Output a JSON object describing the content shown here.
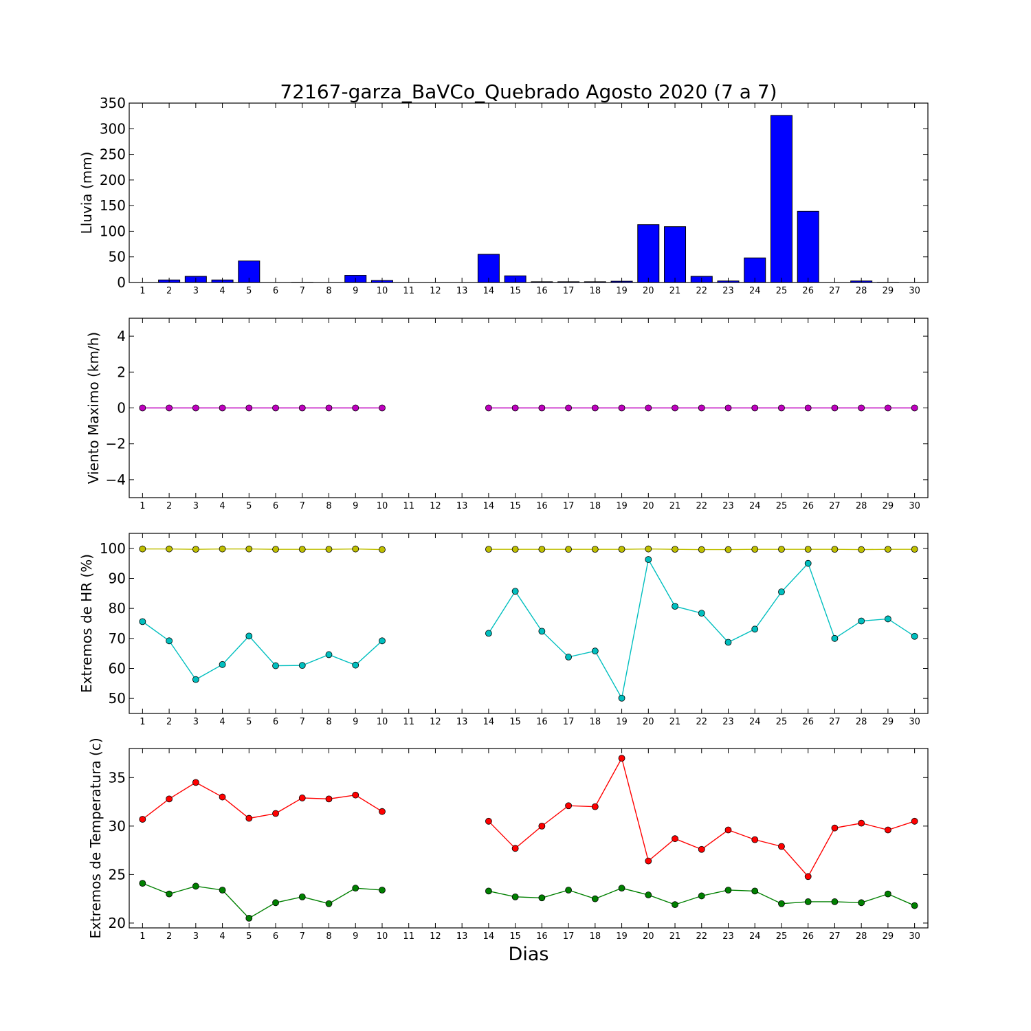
{
  "title": "72167-garza_BaVCo_Quebrado Agosto 2020  (7 a 7)",
  "xlabel": "Dias",
  "chart_data": [
    {
      "type": "bar",
      "ylabel": "Lluvia (mm)",
      "ylim": [
        0,
        350
      ],
      "yticks": [
        0,
        50,
        100,
        150,
        200,
        250,
        300,
        350
      ],
      "x": [
        1,
        2,
        3,
        4,
        5,
        6,
        7,
        8,
        9,
        10,
        11,
        12,
        13,
        14,
        15,
        16,
        17,
        18,
        19,
        20,
        21,
        22,
        23,
        24,
        25,
        26,
        27,
        28,
        29,
        30
      ],
      "xlim": [
        0.5,
        30.5
      ],
      "series": [
        {
          "color": "#0000ff",
          "values": [
            0,
            5,
            12,
            5,
            42,
            0,
            0.3,
            0,
            14,
            4,
            null,
            null,
            null,
            55,
            13,
            1.5,
            1.5,
            1.5,
            2.5,
            113,
            109,
            12,
            3,
            48,
            326,
            139,
            0,
            3,
            0.3,
            0
          ]
        }
      ]
    },
    {
      "type": "line",
      "ylabel": "Viento Maximo (km/h)",
      "ylim": [
        -5,
        5
      ],
      "yticks": [
        -4,
        -2,
        0,
        2,
        4
      ],
      "yticklabels": [
        "−4",
        "−2",
        "0",
        "2",
        "4"
      ],
      "x": [
        1,
        2,
        3,
        4,
        5,
        6,
        7,
        8,
        9,
        10,
        11,
        12,
        13,
        14,
        15,
        16,
        17,
        18,
        19,
        20,
        21,
        22,
        23,
        24,
        25,
        26,
        27,
        28,
        29,
        30
      ],
      "xlim": [
        0.5,
        30.5
      ],
      "series": [
        {
          "color": "#bf00bf",
          "values": [
            0,
            0,
            0,
            0,
            0,
            0,
            0,
            0,
            0,
            0,
            null,
            null,
            null,
            0,
            0,
            0,
            0,
            0,
            0,
            0,
            0,
            0,
            0,
            0,
            0,
            0,
            0,
            0,
            0,
            0
          ]
        }
      ]
    },
    {
      "type": "line",
      "ylabel": "Extremos de HR (%)",
      "ylim": [
        45,
        105
      ],
      "yticks": [
        50,
        60,
        70,
        80,
        90,
        100
      ],
      "x": [
        1,
        2,
        3,
        4,
        5,
        6,
        7,
        8,
        9,
        10,
        11,
        12,
        13,
        14,
        15,
        16,
        17,
        18,
        19,
        20,
        21,
        22,
        23,
        24,
        25,
        26,
        27,
        28,
        29,
        30
      ],
      "xlim": [
        0.5,
        30.5
      ],
      "series": [
        {
          "color": "#bfbf00",
          "values": [
            99.8,
            99.8,
            99.7,
            99.8,
            99.8,
            99.7,
            99.7,
            99.7,
            99.8,
            99.6,
            null,
            null,
            null,
            99.7,
            99.7,
            99.7,
            99.7,
            99.7,
            99.7,
            99.8,
            99.7,
            99.6,
            99.6,
            99.7,
            99.7,
            99.7,
            99.7,
            99.6,
            99.7,
            99.7
          ]
        },
        {
          "color": "#00bfbf",
          "values": [
            75.6,
            69.2,
            56.3,
            61.3,
            70.8,
            60.9,
            61.0,
            64.6,
            61.1,
            69.2,
            null,
            null,
            null,
            71.7,
            85.7,
            72.4,
            63.8,
            65.8,
            50.1,
            96.3,
            80.7,
            78.4,
            68.7,
            73.1,
            85.5,
            95.0,
            70.0,
            75.8,
            76.5,
            70.7
          ]
        }
      ]
    },
    {
      "type": "line",
      "ylabel": "Extremos de Temperatura (c)",
      "ylim": [
        19.5,
        38
      ],
      "yticks": [
        20,
        25,
        30,
        35
      ],
      "x": [
        1,
        2,
        3,
        4,
        5,
        6,
        7,
        8,
        9,
        10,
        11,
        12,
        13,
        14,
        15,
        16,
        17,
        18,
        19,
        20,
        21,
        22,
        23,
        24,
        25,
        26,
        27,
        28,
        29,
        30
      ],
      "xlim": [
        0.5,
        30.5
      ],
      "series": [
        {
          "color": "#ff0000",
          "values": [
            30.7,
            32.8,
            34.5,
            33.0,
            30.8,
            31.3,
            32.9,
            32.8,
            33.2,
            31.5,
            null,
            null,
            null,
            30.5,
            27.7,
            30.0,
            32.1,
            32.0,
            37.0,
            26.4,
            28.7,
            27.6,
            29.6,
            28.6,
            27.9,
            24.8,
            29.8,
            30.3,
            29.6,
            30.5
          ]
        },
        {
          "color": "#008000",
          "values": [
            24.1,
            23.0,
            23.8,
            23.4,
            20.5,
            22.1,
            22.7,
            22.0,
            23.6,
            23.4,
            null,
            null,
            null,
            23.3,
            22.7,
            22.6,
            23.4,
            22.5,
            23.6,
            22.9,
            21.9,
            22.8,
            23.4,
            23.3,
            22.0,
            22.2,
            22.2,
            22.1,
            23.0,
            21.8
          ]
        }
      ]
    }
  ]
}
